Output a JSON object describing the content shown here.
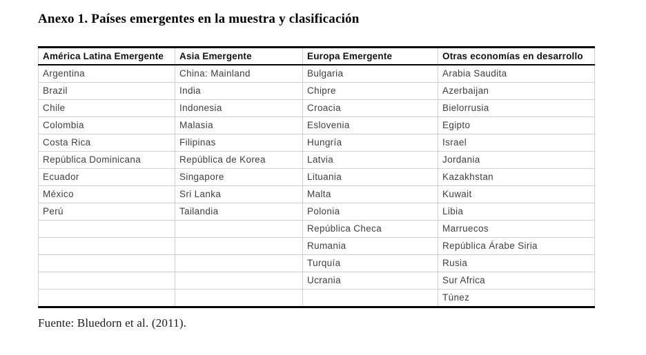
{
  "page": {
    "title": "Anexo 1. Países emergentes en la muestra y clasificación",
    "source_note": "Fuente: Bluedorn et al. (2011)."
  },
  "table": {
    "columns": [
      "América Latina Emergente",
      "Asia Emergente",
      "Europa Emergente",
      "Otras economías en desarrollo"
    ],
    "rows": [
      [
        "Argentina",
        "China: Mainland",
        "Bulgaria",
        "Arabia Saudita"
      ],
      [
        "Brazil",
        "India",
        "Chipre",
        "Azerbaijan"
      ],
      [
        "Chile",
        "Indonesia",
        "Croacia",
        "Bielorrusia"
      ],
      [
        "Colombia",
        "Malasia",
        "Eslovenia",
        "Egipto"
      ],
      [
        "Costa Rica",
        "Filipinas",
        "Hungría",
        "Israel"
      ],
      [
        "República Dominicana",
        "República de Korea",
        "Latvia",
        "Jordania"
      ],
      [
        "Ecuador",
        "Singapore",
        "Lituania",
        "Kazakhstan"
      ],
      [
        "México",
        "Sri Lanka",
        "Malta",
        "Kuwait"
      ],
      [
        "Perú",
        "Tailandia",
        "Polonia",
        "Libia"
      ],
      [
        "",
        "",
        "República Checa",
        "Marruecos"
      ],
      [
        "",
        "",
        "Rumania",
        "República Árabe Siria"
      ],
      [
        "",
        "",
        "Turquía",
        "Rusia"
      ],
      [
        "",
        "",
        "Ucrania",
        "Sur Africa"
      ],
      [
        "",
        "",
        "",
        "Túnez"
      ]
    ],
    "colors": {
      "heavy_rule": "#000000",
      "cell_border": "#c9d0d7",
      "body_text": "#3f3f3f",
      "header_text": "#121212"
    }
  }
}
